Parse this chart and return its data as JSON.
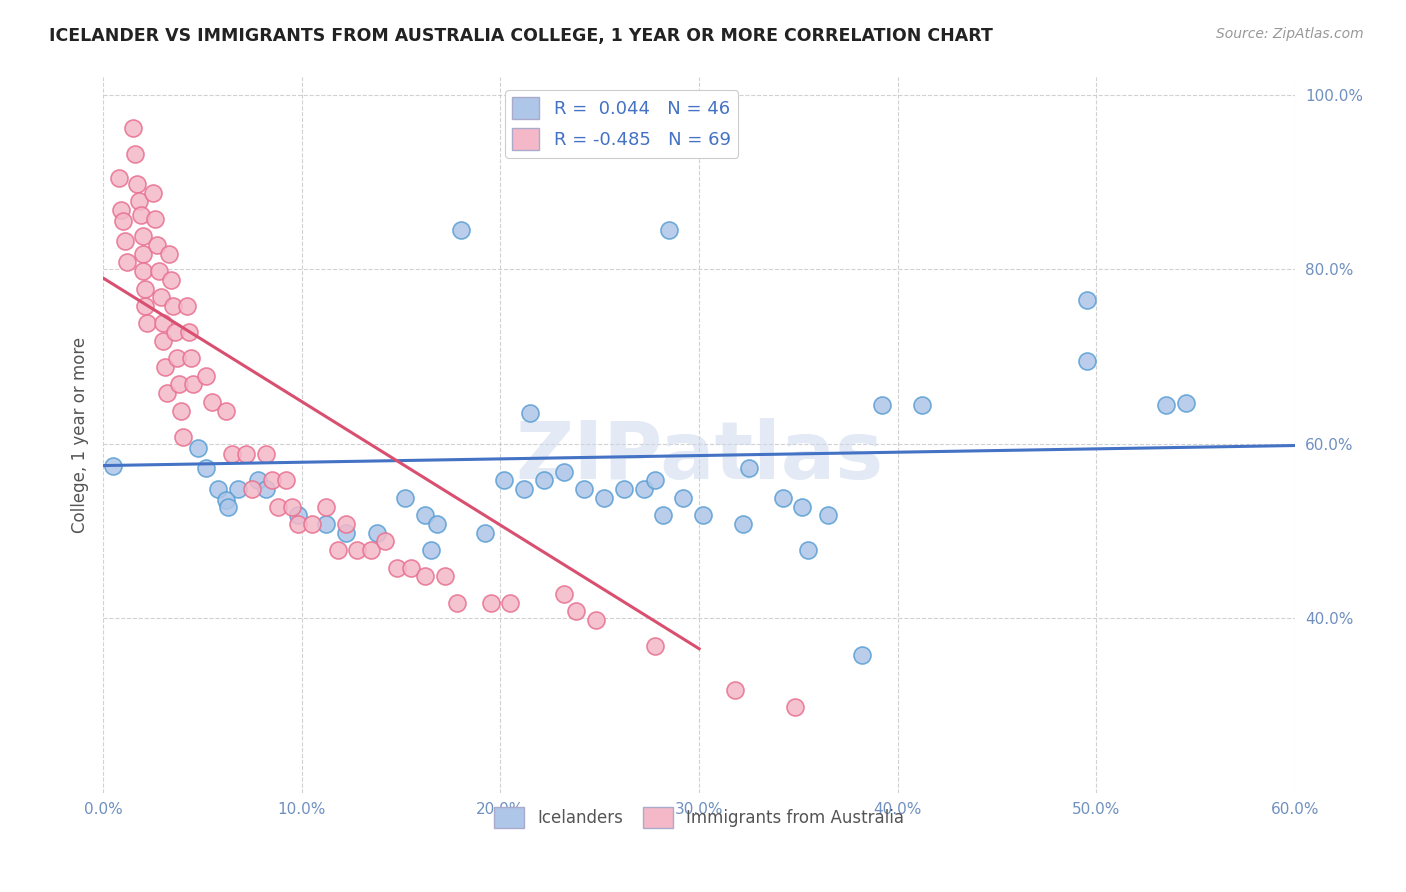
{
  "title": "ICELANDER VS IMMIGRANTS FROM AUSTRALIA COLLEGE, 1 YEAR OR MORE CORRELATION CHART",
  "source": "Source: ZipAtlas.com",
  "ylabel_label": "College, 1 year or more",
  "legend_label_blue": "Icelanders",
  "legend_label_pink": "Immigrants from Australia",
  "blue_color": "#aec6e8",
  "blue_edge": "#5a9fd4",
  "pink_color": "#f4b8c8",
  "pink_edge": "#e87090",
  "blue_line_color": "#4472c4",
  "pink_line_color": "#d94f70",
  "watermark": "ZIPatlas",
  "blue_R": 0.044,
  "blue_N": 46,
  "pink_R": -0.485,
  "pink_N": 69,
  "xlim": [
    0.0,
    0.6
  ],
  "ylim": [
    0.2,
    1.02
  ],
  "x_ticks": [
    0.0,
    0.1,
    0.2,
    0.3,
    0.4,
    0.5,
    0.6
  ],
  "x_tick_labels": [
    "0.0%",
    "10.0%",
    "20.0%",
    "30.0%",
    "40.0%",
    "50.0%",
    "60.0%"
  ],
  "y_ticks": [
    0.4,
    0.6,
    0.8,
    1.0
  ],
  "y_tick_labels": [
    "40.0%",
    "60.0%",
    "80.0%",
    "100.0%"
  ],
  "blue_line_x": [
    0.0,
    0.6
  ],
  "blue_line_y": [
    0.575,
    0.598
  ],
  "pink_line_x": [
    0.0,
    0.3
  ],
  "pink_line_y": [
    0.79,
    0.365
  ],
  "blue_scatter_x": [
    0.005,
    0.18,
    0.285,
    0.215,
    0.495,
    0.495,
    0.535,
    0.545,
    0.325,
    0.355,
    0.365,
    0.165,
    0.048,
    0.052,
    0.058,
    0.068,
    0.062,
    0.063,
    0.078,
    0.082,
    0.098,
    0.112,
    0.122,
    0.138,
    0.152,
    0.162,
    0.168,
    0.192,
    0.202,
    0.212,
    0.222,
    0.232,
    0.242,
    0.252,
    0.262,
    0.272,
    0.278,
    0.282,
    0.292,
    0.302,
    0.322,
    0.342,
    0.352,
    0.382,
    0.392,
    0.412
  ],
  "blue_scatter_y": [
    0.575,
    0.845,
    0.845,
    0.635,
    0.765,
    0.695,
    0.645,
    0.647,
    0.572,
    0.478,
    0.518,
    0.478,
    0.595,
    0.572,
    0.548,
    0.548,
    0.535,
    0.528,
    0.558,
    0.548,
    0.518,
    0.508,
    0.498,
    0.498,
    0.538,
    0.518,
    0.508,
    0.498,
    0.558,
    0.548,
    0.558,
    0.568,
    0.548,
    0.538,
    0.548,
    0.548,
    0.558,
    0.518,
    0.538,
    0.518,
    0.508,
    0.538,
    0.528,
    0.358,
    0.645,
    0.645
  ],
  "pink_scatter_x": [
    0.008,
    0.009,
    0.01,
    0.011,
    0.012,
    0.015,
    0.016,
    0.017,
    0.018,
    0.019,
    0.02,
    0.02,
    0.02,
    0.021,
    0.021,
    0.022,
    0.025,
    0.026,
    0.027,
    0.028,
    0.029,
    0.03,
    0.03,
    0.031,
    0.032,
    0.033,
    0.034,
    0.035,
    0.036,
    0.037,
    0.038,
    0.039,
    0.04,
    0.042,
    0.043,
    0.044,
    0.045,
    0.052,
    0.055,
    0.062,
    0.065,
    0.072,
    0.075,
    0.082,
    0.085,
    0.088,
    0.092,
    0.095,
    0.098,
    0.105,
    0.112,
    0.118,
    0.122,
    0.128,
    0.135,
    0.142,
    0.148,
    0.155,
    0.162,
    0.172,
    0.178,
    0.195,
    0.205,
    0.232,
    0.238,
    0.248,
    0.278,
    0.318,
    0.348
  ],
  "pink_scatter_y": [
    0.905,
    0.868,
    0.855,
    0.832,
    0.808,
    0.962,
    0.932,
    0.898,
    0.878,
    0.862,
    0.838,
    0.818,
    0.798,
    0.778,
    0.758,
    0.738,
    0.888,
    0.858,
    0.828,
    0.798,
    0.768,
    0.738,
    0.718,
    0.688,
    0.658,
    0.818,
    0.788,
    0.758,
    0.728,
    0.698,
    0.668,
    0.638,
    0.608,
    0.758,
    0.728,
    0.698,
    0.668,
    0.678,
    0.648,
    0.638,
    0.588,
    0.588,
    0.548,
    0.588,
    0.558,
    0.528,
    0.558,
    0.528,
    0.508,
    0.508,
    0.528,
    0.478,
    0.508,
    0.478,
    0.478,
    0.488,
    0.458,
    0.458,
    0.448,
    0.448,
    0.418,
    0.418,
    0.418,
    0.428,
    0.408,
    0.398,
    0.368,
    0.318,
    0.298
  ]
}
